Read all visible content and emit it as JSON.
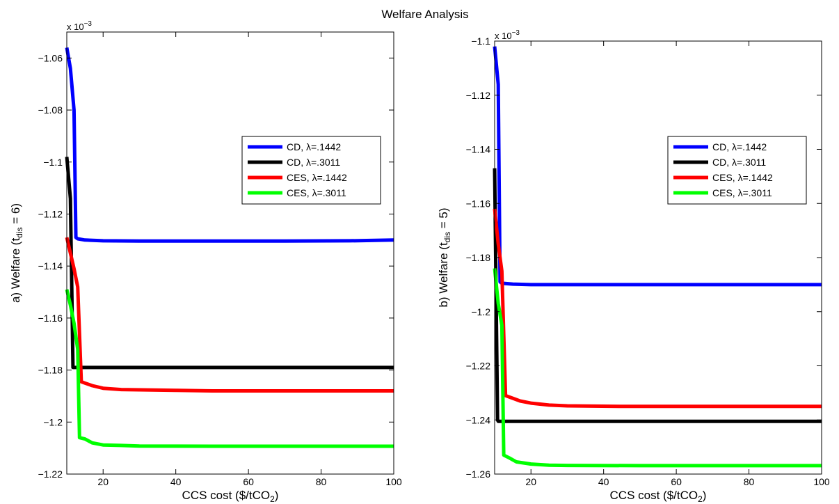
{
  "figure_title": "Welfare Analysis",
  "chart_data": [
    {
      "type": "line",
      "ylabel_main": "a) Welfare  (t",
      "ylabel_sub": "dis",
      "ylabel_end": " = 6)",
      "xlabel_main": "CCS cost ($/tCO",
      "xlabel_sub": "2",
      "xlabel_end": ")",
      "exponent_label": "x 10",
      "exponent_power": "-3",
      "xlim": [
        10,
        100
      ],
      "ylim": [
        -1.22,
        -1.05
      ],
      "xticks": [
        20,
        40,
        60,
        80,
        100
      ],
      "yticks": [
        -1.06,
        -1.08,
        -1.1,
        -1.12,
        -1.14,
        -1.16,
        -1.18,
        -1.2,
        -1.22
      ],
      "xtick_labels": [
        "20",
        "40",
        "60",
        "80",
        "100"
      ],
      "ytick_labels": [
        "-1.06",
        "-1.08",
        "-1.1",
        "-1.12",
        "-1.14",
        "-1.16",
        "-1.18",
        "-1.2",
        "-1.22"
      ],
      "legend": {
        "placement": "right",
        "entries": [
          "CD, λ=.1442",
          "CD, λ=.3011",
          "CES, λ=.1442",
          "CES, λ=.3011"
        ]
      },
      "series": [
        {
          "name": "CD, λ=.1442",
          "color": "#0000ff",
          "points": [
            [
              10,
              -1.056
            ],
            [
              11,
              -1.064
            ],
            [
              12,
              -1.08
            ],
            [
              12.5,
              -1.129
            ],
            [
              13,
              -1.1295
            ],
            [
              15,
              -1.13
            ],
            [
              20,
              -1.1303
            ],
            [
              30,
              -1.1304
            ],
            [
              50,
              -1.1304
            ],
            [
              70,
              -1.1304
            ],
            [
              88,
              -1.1303
            ],
            [
              100,
              -1.13
            ]
          ]
        },
        {
          "name": "CD, λ=.3011",
          "color": "#000000",
          "points": [
            [
              10,
              -1.098
            ],
            [
              11,
              -1.114
            ],
            [
              11.7,
              -1.179
            ],
            [
              12,
              -1.179
            ],
            [
              20,
              -1.179
            ],
            [
              40,
              -1.179
            ],
            [
              60,
              -1.179
            ],
            [
              80,
              -1.179
            ],
            [
              100,
              -1.179
            ]
          ]
        },
        {
          "name": "CES, λ=.1442",
          "color": "#ff0000",
          "points": [
            [
              10,
              -1.129
            ],
            [
              11,
              -1.135
            ],
            [
              12,
              -1.141
            ],
            [
              13,
              -1.148
            ],
            [
              14,
              -1.1845
            ],
            [
              15,
              -1.185
            ],
            [
              17,
              -1.186
            ],
            [
              20,
              -1.187
            ],
            [
              25,
              -1.1875
            ],
            [
              30,
              -1.1876
            ],
            [
              40,
              -1.1878
            ],
            [
              50,
              -1.188
            ],
            [
              70,
              -1.188
            ],
            [
              100,
              -1.188
            ]
          ]
        },
        {
          "name": "CES, λ=.3011",
          "color": "#00ff00",
          "points": [
            [
              10,
              -1.149
            ],
            [
              11,
              -1.155
            ],
            [
              12,
              -1.162
            ],
            [
              13,
              -1.172
            ],
            [
              13.5,
              -1.206
            ],
            [
              15,
              -1.2065
            ],
            [
              17,
              -1.208
            ],
            [
              20,
              -1.2088
            ],
            [
              25,
              -1.209
            ],
            [
              30,
              -1.2092
            ],
            [
              50,
              -1.2093
            ],
            [
              70,
              -1.2093
            ],
            [
              100,
              -1.2093
            ]
          ]
        }
      ]
    },
    {
      "type": "line",
      "ylabel_main": "b) Welfare  (t",
      "ylabel_sub": "dis",
      "ylabel_end": " = 5)",
      "xlabel_main": "CCS cost ($/tCO",
      "xlabel_sub": "2",
      "xlabel_end": ")",
      "exponent_label": "x 10",
      "exponent_power": "-3",
      "xlim": [
        10,
        100
      ],
      "ylim": [
        -1.26,
        -1.1
      ],
      "xticks": [
        20,
        40,
        60,
        80,
        100
      ],
      "yticks": [
        -1.1,
        -1.12,
        -1.14,
        -1.16,
        -1.18,
        -1.2,
        -1.22,
        -1.24,
        -1.26
      ],
      "xtick_labels": [
        "20",
        "40",
        "60",
        "80",
        "100"
      ],
      "ytick_labels": [
        "-1.1",
        "-1.12",
        "-1.14",
        "-1.16",
        "-1.18",
        "-1.2",
        "-1.22",
        "-1.24",
        "-1.26"
      ],
      "legend": {
        "placement": "right",
        "entries": [
          "CD, λ=.1442",
          "CD, λ=.3011",
          "CES, λ=.1442",
          "CES, λ=.3011"
        ]
      },
      "series": [
        {
          "name": "CD, λ=.1442",
          "color": "#0000ff",
          "points": [
            [
              10,
              -1.102
            ],
            [
              11,
              -1.116
            ],
            [
              11.5,
              -1.189
            ],
            [
              12,
              -1.1895
            ],
            [
              15,
              -1.1898
            ],
            [
              20,
              -1.19
            ],
            [
              40,
              -1.19
            ],
            [
              60,
              -1.19
            ],
            [
              80,
              -1.19
            ],
            [
              100,
              -1.19
            ]
          ]
        },
        {
          "name": "CD, λ=.3011",
          "color": "#000000",
          "points": [
            [
              10,
              -1.147
            ],
            [
              10.8,
              -1.24
            ],
            [
              11,
              -1.2405
            ],
            [
              20,
              -1.2405
            ],
            [
              40,
              -1.2405
            ],
            [
              60,
              -1.2405
            ],
            [
              80,
              -1.2405
            ],
            [
              100,
              -1.2405
            ]
          ]
        },
        {
          "name": "CES, λ=.1442",
          "color": "#ff0000",
          "points": [
            [
              10,
              -1.162
            ],
            [
              11,
              -1.175
            ],
            [
              12,
              -1.185
            ],
            [
              13,
              -1.231
            ],
            [
              15,
              -1.232
            ],
            [
              17,
              -1.233
            ],
            [
              20,
              -1.2338
            ],
            [
              25,
              -1.2345
            ],
            [
              30,
              -1.2348
            ],
            [
              45,
              -1.235
            ],
            [
              70,
              -1.235
            ],
            [
              100,
              -1.235
            ]
          ]
        },
        {
          "name": "CES, λ=.3011",
          "color": "#00ff00",
          "points": [
            [
              10,
              -1.184
            ],
            [
              11,
              -1.197
            ],
            [
              12,
              -1.205
            ],
            [
              12.5,
              -1.253
            ],
            [
              14,
              -1.254
            ],
            [
              16,
              -1.2555
            ],
            [
              20,
              -1.2563
            ],
            [
              25,
              -1.2567
            ],
            [
              30,
              -1.2568
            ],
            [
              50,
              -1.2569
            ],
            [
              75,
              -1.2569
            ],
            [
              100,
              -1.2569
            ]
          ]
        }
      ]
    }
  ]
}
